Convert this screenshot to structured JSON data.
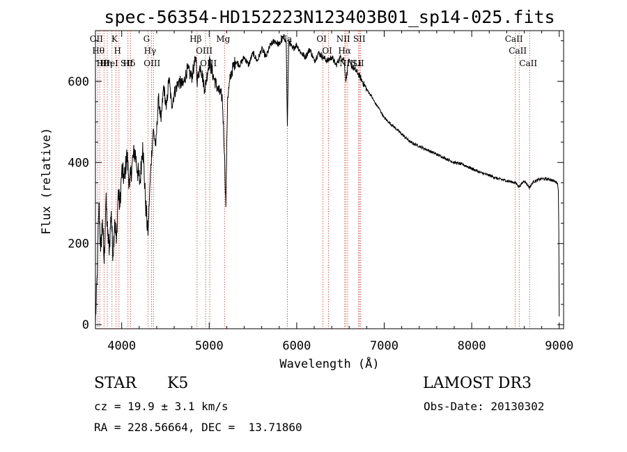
{
  "chart_data": {
    "type": "line",
    "title": "spec-56354-HD152223N123403B01_sp14-025.fits",
    "xlabel": "Wavelength (Å)",
    "ylabel": "Flux (relative)",
    "xlim": [
      3700,
      9050
    ],
    "ylim": [
      -10,
      725
    ],
    "xticks": [
      4000,
      5000,
      6000,
      7000,
      8000,
      9000
    ],
    "yticks": [
      0,
      200,
      400,
      600
    ],
    "series": [
      {
        "name": "flux",
        "x": [
          3700,
          3720,
          3740,
          3760,
          3780,
          3800,
          3820,
          3840,
          3860,
          3880,
          3900,
          3920,
          3940,
          3960,
          3980,
          4000,
          4030,
          4060,
          4090,
          4120,
          4150,
          4180,
          4210,
          4240,
          4270,
          4300,
          4330,
          4360,
          4390,
          4420,
          4450,
          4480,
          4510,
          4540,
          4570,
          4600,
          4650,
          4700,
          4750,
          4800,
          4850,
          4860,
          4900,
          4950,
          5000,
          5050,
          5100,
          5150,
          5175,
          5190,
          5210,
          5250,
          5300,
          5350,
          5400,
          5450,
          5500,
          5550,
          5600,
          5650,
          5700,
          5750,
          5800,
          5850,
          5880,
          5893,
          5910,
          5950,
          6000,
          6050,
          6100,
          6150,
          6200,
          6250,
          6300,
          6350,
          6400,
          6450,
          6500,
          6540,
          6563,
          6590,
          6620,
          6660,
          6700,
          6750,
          6800,
          6850,
          6900,
          6950,
          7000,
          7100,
          7200,
          7300,
          7400,
          7500,
          7600,
          7700,
          7800,
          7900,
          8000,
          8100,
          8200,
          8300,
          8400,
          8500,
          8542,
          8600,
          8662,
          8700,
          8800,
          8900,
          8980,
          8990,
          8995,
          9000
        ],
        "y": [
          5,
          120,
          300,
          180,
          260,
          150,
          310,
          220,
          190,
          280,
          170,
          260,
          200,
          330,
          290,
          380,
          360,
          420,
          340,
          400,
          430,
          380,
          350,
          450,
          310,
          220,
          380,
          480,
          440,
          560,
          500,
          590,
          530,
          610,
          540,
          570,
          600,
          590,
          630,
          610,
          660,
          600,
          640,
          580,
          650,
          610,
          580,
          560,
          420,
          290,
          560,
          620,
          650,
          640,
          660,
          640,
          670,
          650,
          680,
          660,
          690,
          700,
          690,
          710,
          700,
          490,
          700,
          680,
          690,
          670,
          660,
          680,
          650,
          670,
          660,
          650,
          660,
          640,
          660,
          655,
          600,
          650,
          640,
          630,
          620,
          600,
          580,
          565,
          545,
          530,
          510,
          490,
          470,
          450,
          440,
          430,
          420,
          410,
          400,
          395,
          385,
          375,
          368,
          360,
          355,
          350,
          340,
          355,
          338,
          352,
          360,
          358,
          350,
          330,
          230,
          20
        ]
      }
    ],
    "lines": [
      {
        "x": 3727,
        "label": "OII"
      },
      {
        "x": 3750,
        "label": "Hθ"
      },
      {
        "x": 3798,
        "label": "Hθ"
      },
      {
        "x": 3835,
        "label": "Hη"
      },
      {
        "x": 3889,
        "label": "HeI"
      },
      {
        "x": 3934,
        "label": "K"
      },
      {
        "x": 3969,
        "label": "H"
      },
      {
        "x": 4072,
        "label": "SII"
      },
      {
        "x": 4102,
        "label": "Hδ"
      },
      {
        "x": 4300,
        "label": "G"
      },
      {
        "x": 4340,
        "label": "Hγ"
      },
      {
        "x": 4363,
        "label": "OIII"
      },
      {
        "x": 4861,
        "label": "Hβ"
      },
      {
        "x": 4959,
        "label": "OIII"
      },
      {
        "x": 5007,
        "label": "OIII"
      },
      {
        "x": 5175,
        "label": "Mg"
      },
      {
        "x": 5893,
        "label": "Na"
      },
      {
        "x": 6300,
        "label": "OI"
      },
      {
        "x": 6364,
        "label": "OI"
      },
      {
        "x": 6548,
        "label": "NII"
      },
      {
        "x": 6563,
        "label": "Hα"
      },
      {
        "x": 6583,
        "label": "NII"
      },
      {
        "x": 6708,
        "label": "Li"
      },
      {
        "x": 6716,
        "label": "SII"
      },
      {
        "x": 6731,
        "label": "SII"
      },
      {
        "x": 8498,
        "label": "CaII"
      },
      {
        "x": 8542,
        "label": "CaII"
      },
      {
        "x": 8662,
        "label": "CaII"
      }
    ]
  },
  "info": {
    "object_class": "STAR",
    "subclass": "K5",
    "survey": "LAMOST DR3",
    "redshift": "cz = 19.9 ± 3.1 km/s",
    "obs_date": "Obs-Date: 20130302",
    "coords": "RA = 228.56664, DEC =  13.71860"
  }
}
